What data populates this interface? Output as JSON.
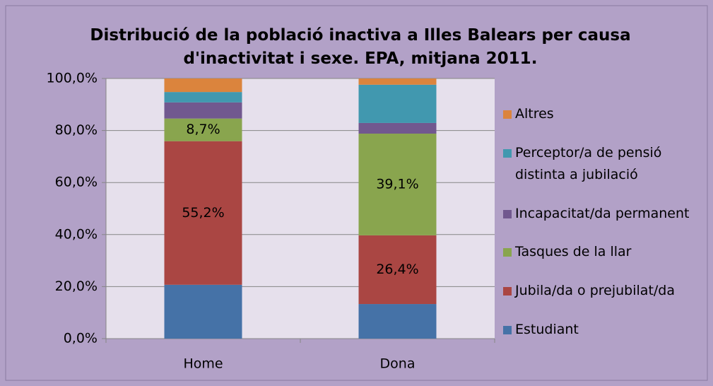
{
  "chart_data": {
    "type": "stacked_bar",
    "title": "Distribució de la població inactiva a Illes Balears per causa d'inactivitat i sexe. EPA, mitjana 2011.",
    "categories": [
      "Home",
      "Dona"
    ],
    "series": [
      {
        "name": "Estudiant",
        "color": "#4572a7",
        "values": [
          20.7,
          13.3
        ]
      },
      {
        "name": "Jubila/da o prejubilat/da",
        "color": "#aa4643",
        "values": [
          55.2,
          26.4
        ],
        "value_labels": [
          "55,2%",
          "26,4%"
        ]
      },
      {
        "name": "Tasques de la llar",
        "color": "#89a54e",
        "values": [
          8.7,
          39.1
        ],
        "value_labels": [
          "8,7%",
          "39,1%"
        ]
      },
      {
        "name": "Incapacitat/da permanent",
        "color": "#71588f",
        "values": [
          6.2,
          4.1
        ]
      },
      {
        "name": "Perceptor/a de pensió distinta a jubilació",
        "color": "#4198af",
        "values": [
          4.0,
          14.7
        ]
      },
      {
        "name": "Altres",
        "color": "#db843d",
        "values": [
          5.2,
          2.4
        ]
      }
    ],
    "ylim": [
      0,
      100
    ],
    "yticks": [
      {
        "value": 0,
        "label": "0,0%"
      },
      {
        "value": 20,
        "label": "20,0%"
      },
      {
        "value": 40,
        "label": "40,0%"
      },
      {
        "value": 60,
        "label": "60,0%"
      },
      {
        "value": 80,
        "label": "80,0%"
      },
      {
        "value": 100,
        "label": "100,0%"
      }
    ],
    "grid": true,
    "legend": "right"
  }
}
